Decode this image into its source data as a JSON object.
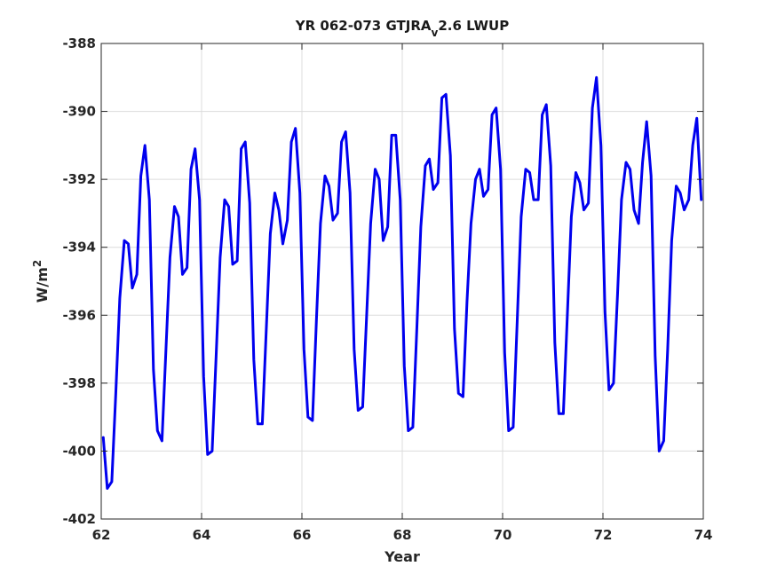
{
  "chart_data": {
    "type": "line",
    "title": {
      "prefix": "YR 062-073 GTJRA",
      "subscript": "v",
      "suffix": "2.6 LWUP"
    },
    "xlabel": "Year",
    "ylabel": {
      "base": "W/m",
      "superscript": "2"
    },
    "xlim": [
      62,
      74
    ],
    "ylim": [
      -402,
      -388
    ],
    "xticks": [
      62,
      64,
      66,
      68,
      70,
      72,
      74
    ],
    "yticks": [
      -388,
      -390,
      -392,
      -394,
      -396,
      -398,
      -400,
      -402
    ],
    "grid": true,
    "series_color": "#0000ee",
    "series": [
      {
        "x": [
          62.04,
          62.12,
          62.21,
          62.29,
          62.37,
          62.46,
          62.54,
          62.62,
          62.71,
          62.79,
          62.87,
          62.96,
          63.04,
          63.12,
          63.21,
          63.29,
          63.37,
          63.46,
          63.54,
          63.62,
          63.71,
          63.79,
          63.87,
          63.96,
          64.04,
          64.12,
          64.21,
          64.29,
          64.37,
          64.46,
          64.54,
          64.62,
          64.71,
          64.79,
          64.87,
          64.96,
          65.04,
          65.12,
          65.21,
          65.29,
          65.37,
          65.46,
          65.54,
          65.62,
          65.71,
          65.79,
          65.87,
          65.96,
          66.04,
          66.12,
          66.21,
          66.29,
          66.37,
          66.46,
          66.54,
          66.62,
          66.71,
          66.79,
          66.87,
          66.96,
          67.04,
          67.12,
          67.21,
          67.29,
          67.37,
          67.46,
          67.54,
          67.62,
          67.71,
          67.79,
          67.87,
          67.96,
          68.04,
          68.12,
          68.21,
          68.29,
          68.37,
          68.46,
          68.54,
          68.62,
          68.71,
          68.79,
          68.87,
          68.96,
          69.04,
          69.12,
          69.21,
          69.29,
          69.37,
          69.46,
          69.54,
          69.62,
          69.71,
          69.79,
          69.87,
          69.96,
          70.04,
          70.12,
          70.21,
          70.29,
          70.37,
          70.46,
          70.54,
          70.62,
          70.71,
          70.79,
          70.87,
          70.96,
          71.04,
          71.12,
          71.21,
          71.29,
          71.37,
          71.46,
          71.54,
          71.62,
          71.71,
          71.79,
          71.87,
          71.96,
          72.04,
          72.12,
          72.21,
          72.29,
          72.37,
          72.46,
          72.54,
          72.62,
          72.71,
          72.79,
          72.87,
          72.96,
          73.04,
          73.12,
          73.21,
          73.29,
          73.37,
          73.46,
          73.54,
          73.62,
          73.71,
          73.79,
          73.87,
          73.96
        ],
        "values": [
          -399.6,
          -401.1,
          -400.9,
          -398.3,
          -395.5,
          -393.8,
          -393.9,
          -395.2,
          -394.8,
          -391.9,
          -391.0,
          -392.6,
          -397.6,
          -399.4,
          -399.7,
          -397.0,
          -394.3,
          -392.8,
          -393.1,
          -394.8,
          -394.6,
          -391.7,
          -391.1,
          -392.6,
          -397.8,
          -400.1,
          -400.0,
          -397.2,
          -394.3,
          -392.6,
          -392.8,
          -394.5,
          -394.4,
          -391.1,
          -390.9,
          -392.7,
          -397.3,
          -399.2,
          -399.2,
          -396.4,
          -393.6,
          -392.4,
          -392.9,
          -393.9,
          -393.2,
          -390.9,
          -390.5,
          -392.4,
          -397.0,
          -399.0,
          -399.1,
          -396.1,
          -393.3,
          -391.9,
          -392.2,
          -393.2,
          -393.0,
          -390.9,
          -390.6,
          -392.4,
          -397.0,
          -398.8,
          -398.7,
          -396.0,
          -393.3,
          -391.7,
          -392.0,
          -393.8,
          -393.4,
          -390.7,
          -390.7,
          -392.6,
          -397.5,
          -399.4,
          -399.3,
          -396.4,
          -393.4,
          -391.6,
          -391.4,
          -392.3,
          -392.1,
          -389.6,
          -389.5,
          -391.3,
          -396.4,
          -398.3,
          -398.4,
          -395.6,
          -393.3,
          -392.0,
          -391.7,
          -392.5,
          -392.3,
          -390.1,
          -389.9,
          -391.7,
          -397.1,
          -399.4,
          -399.3,
          -396.2,
          -393.1,
          -391.7,
          -391.8,
          -392.6,
          -392.6,
          -390.1,
          -389.8,
          -391.6,
          -396.8,
          -398.9,
          -398.9,
          -396.0,
          -393.1,
          -391.8,
          -392.1,
          -392.9,
          -392.7,
          -389.9,
          -389.0,
          -391.0,
          -395.9,
          -398.2,
          -398.0,
          -395.4,
          -392.6,
          -391.5,
          -391.7,
          -392.9,
          -393.3,
          -391.5,
          -390.3,
          -391.9,
          -397.2,
          -400.0,
          -399.7,
          -397.0,
          -393.8,
          -392.2,
          -392.4,
          -392.9,
          -392.6,
          -391.0,
          -390.2,
          -392.6
        ]
      }
    ]
  }
}
